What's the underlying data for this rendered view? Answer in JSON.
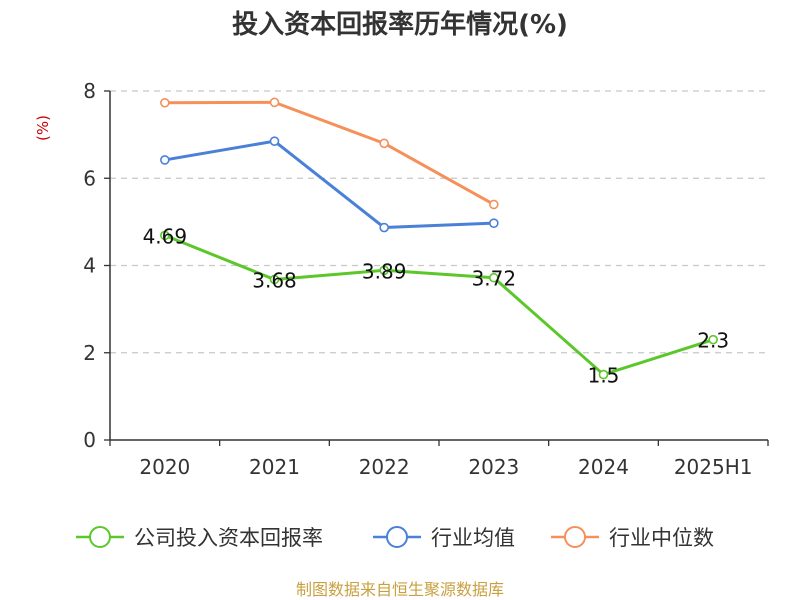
{
  "title": "投入资本回报率历年情况(%)",
  "source": "制图数据来自恒生聚源数据库",
  "chart_data": {
    "type": "line",
    "title": "投入资本回报率历年情况(%)",
    "unit_label": "(%)",
    "categories": [
      "2020",
      "2021",
      "2022",
      "2023",
      "2024",
      "2025H1"
    ],
    "ylim": [
      0,
      8
    ],
    "yticks": [
      0,
      2,
      4,
      6,
      8
    ],
    "grid": true,
    "legend_position": "bottom",
    "series": [
      {
        "name": "公司投入资本回报率",
        "color": "#5cc72a",
        "values": [
          4.69,
          3.68,
          3.89,
          3.72,
          1.5,
          2.3
        ],
        "labels": [
          "4.69",
          "3.68",
          "3.89",
          "3.72",
          "1.5",
          "2.3"
        ]
      },
      {
        "name": "行业均值",
        "color": "#4a80d8",
        "values": [
          6.42,
          6.85,
          4.87,
          4.97,
          null,
          null
        ]
      },
      {
        "name": "行业中位数",
        "color": "#f5905a",
        "values": [
          7.73,
          7.74,
          6.8,
          5.4,
          null,
          null
        ]
      }
    ]
  }
}
